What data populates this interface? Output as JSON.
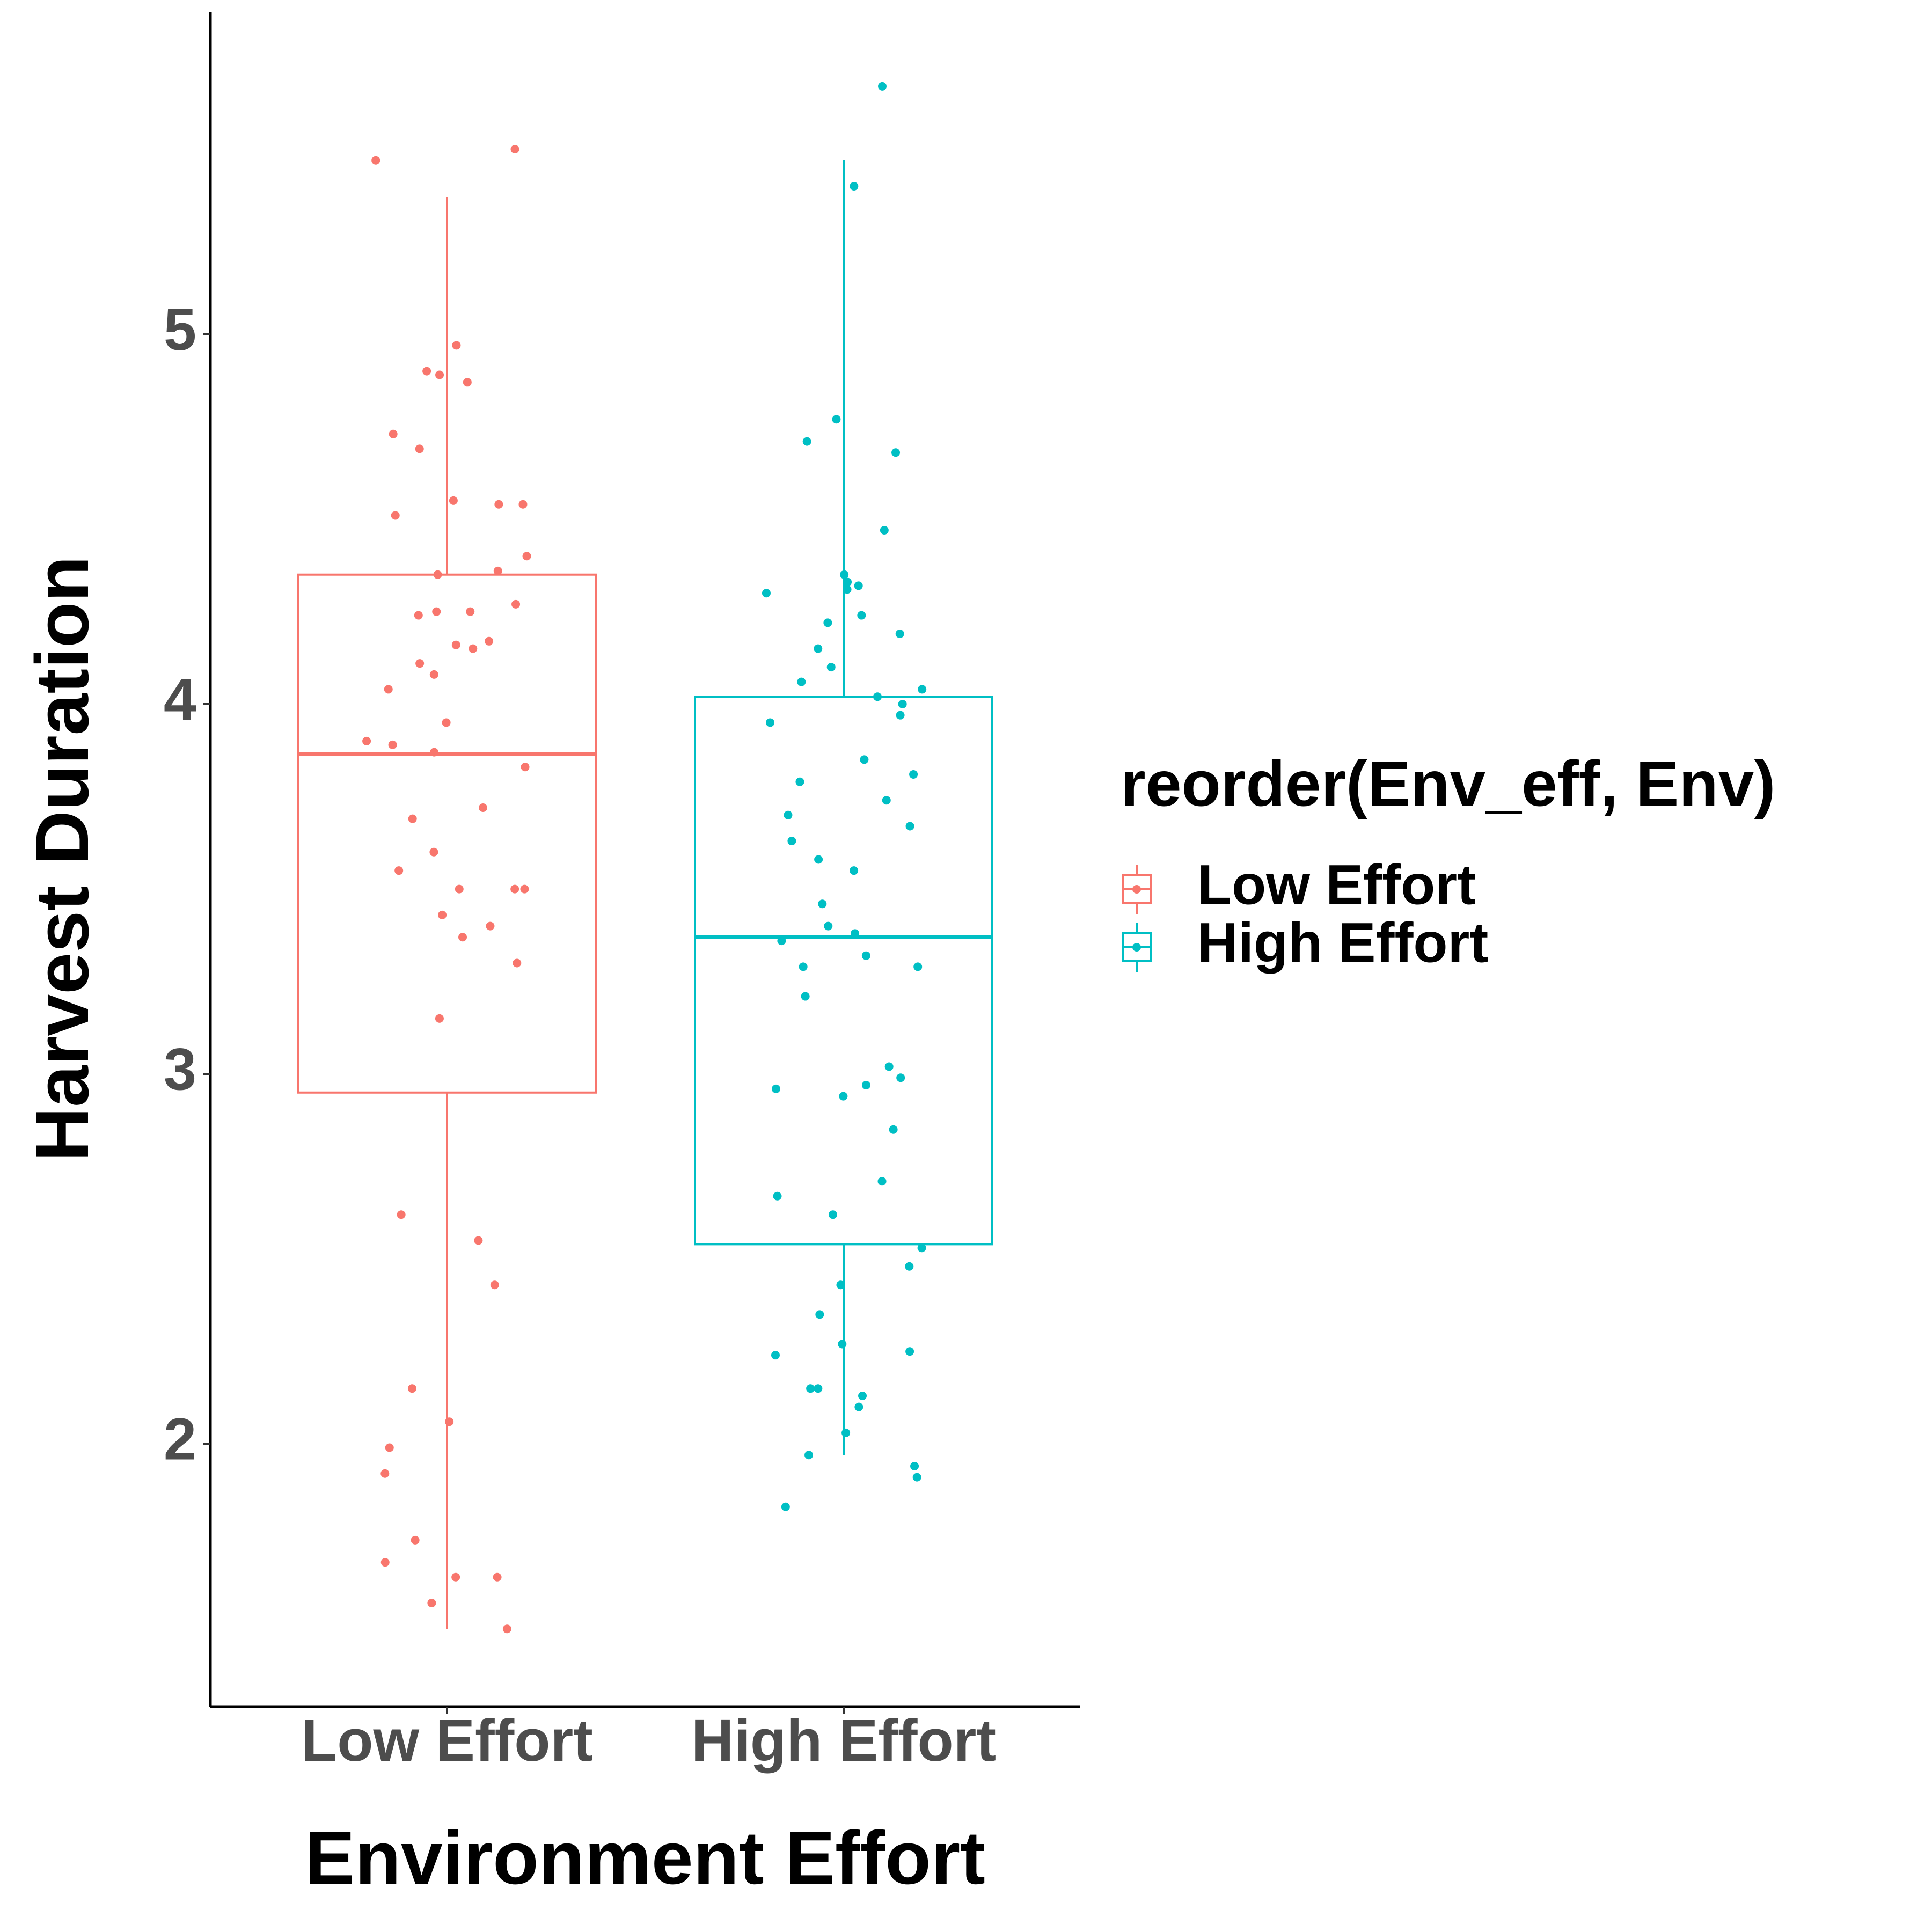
{
  "chart_data": {
    "type": "box",
    "x_label": "Environment Effort",
    "y_label": "Harvest Duration",
    "legend_title": "reorder(Env_eff, Env)",
    "legend": "right",
    "categories": [
      "Low Effort",
      "High Effort"
    ],
    "ylim": [
      1.29,
      5.87
    ],
    "yticks": [
      2,
      3,
      4,
      5
    ],
    "series": [
      {
        "name": "Low Effort",
        "color": "#f8766d",
        "box": {
          "whisker_low": 1.5,
          "q1": 2.95,
          "median": 3.865,
          "q3": 4.35,
          "whisker_high": 5.37
        },
        "points": [
          5.5,
          5.47,
          4.97,
          4.9,
          4.89,
          4.87,
          4.73,
          4.69,
          4.55,
          4.54,
          4.54,
          4.51,
          4.4,
          4.36,
          4.35,
          4.27,
          4.25,
          4.25,
          4.24,
          4.17,
          4.16,
          4.15,
          4.08,
          4.04,
          4.11,
          3.95,
          3.9,
          3.89,
          3.87,
          3.83,
          3.72,
          3.69,
          3.6,
          3.55,
          3.5,
          3.5,
          3.5,
          3.43,
          3.4,
          3.37,
          3.3,
          3.15,
          2.62,
          2.55,
          2.43,
          2.15,
          2.06,
          1.99,
          1.92,
          1.74,
          1.68,
          1.64,
          1.64,
          1.57,
          1.5
        ]
      },
      {
        "name": "High Effort",
        "color": "#00bfc4",
        "box": {
          "whisker_low": 1.97,
          "q1": 2.54,
          "median": 3.37,
          "q3": 4.02,
          "whisker_high": 5.47
        },
        "points": [
          5.67,
          5.4,
          4.77,
          4.71,
          4.68,
          4.47,
          4.35,
          4.33,
          4.31,
          4.3,
          4.32,
          4.24,
          4.22,
          4.19,
          4.15,
          4.1,
          4.06,
          4.04,
          4.02,
          4.0,
          3.97,
          3.95,
          3.85,
          3.81,
          3.79,
          3.74,
          3.7,
          3.67,
          3.63,
          3.58,
          3.55,
          3.46,
          3.4,
          3.38,
          3.36,
          3.32,
          3.29,
          3.29,
          3.21,
          3.02,
          2.99,
          2.97,
          2.96,
          2.94,
          2.85,
          2.71,
          2.67,
          2.62,
          2.53,
          2.48,
          2.43,
          2.35,
          2.27,
          2.24,
          2.25,
          2.15,
          2.15,
          2.13,
          2.1,
          2.03,
          1.97,
          1.94,
          1.91,
          1.83
        ]
      }
    ]
  }
}
